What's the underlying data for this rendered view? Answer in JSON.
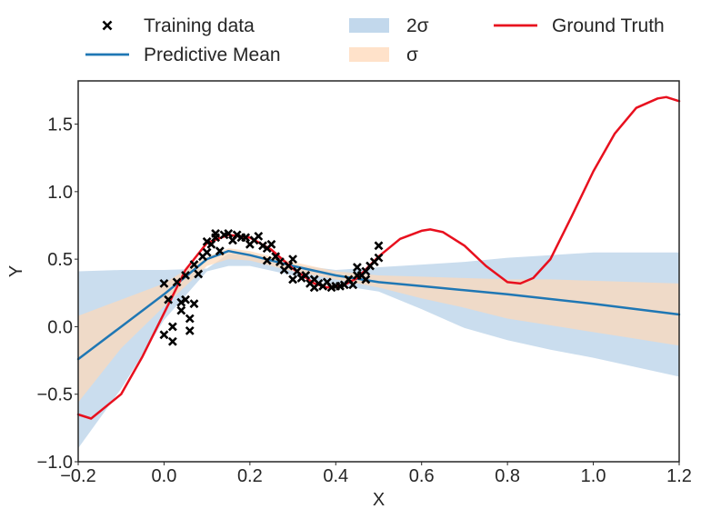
{
  "chart_data": {
    "type": "line",
    "xlabel": "X",
    "ylabel": "Y",
    "xlim": [
      -0.2,
      1.2
    ],
    "ylim": [
      -1.0,
      1.82
    ],
    "xticks": [
      -0.2,
      0.0,
      0.2,
      0.4,
      0.6,
      0.8,
      1.0,
      1.2
    ],
    "xtick_labels": [
      "−0.2",
      "0.0",
      "0.2",
      "0.4",
      "0.6",
      "0.8",
      "1.0",
      "1.2"
    ],
    "yticks": [
      -1.0,
      -0.5,
      0.0,
      0.5,
      1.0,
      1.5
    ],
    "ytick_labels": [
      "−1.0",
      "−0.5",
      "0.0",
      "0.5",
      "1.0",
      "1.5"
    ],
    "grid": false,
    "legend": {
      "placement": "top",
      "entries": [
        {
          "label": "Training data",
          "kind": "marker",
          "color": "#000000"
        },
        {
          "label": "Predictive Mean",
          "kind": "line",
          "color": "#1f77b4"
        },
        {
          "label": "2σ",
          "kind": "patch",
          "color": "#aecbe5"
        },
        {
          "label": "σ",
          "kind": "patch",
          "color": "#ffd8b8"
        },
        {
          "label": "Ground Truth",
          "kind": "line",
          "color": "#e8101e"
        }
      ]
    },
    "series": [
      {
        "name": "Training data",
        "kind": "scatter",
        "color": "#000000",
        "points": [
          [
            0.0,
            0.32
          ],
          [
            0.0,
            -0.06
          ],
          [
            0.01,
            0.2
          ],
          [
            0.02,
            0.0
          ],
          [
            0.02,
            -0.11
          ],
          [
            0.03,
            0.33
          ],
          [
            0.04,
            0.18
          ],
          [
            0.04,
            0.12
          ],
          [
            0.05,
            0.38
          ],
          [
            0.05,
            0.2
          ],
          [
            0.06,
            0.06
          ],
          [
            0.06,
            -0.03
          ],
          [
            0.07,
            0.17
          ],
          [
            0.07,
            0.46
          ],
          [
            0.08,
            0.39
          ],
          [
            0.09,
            0.52
          ],
          [
            0.1,
            0.55
          ],
          [
            0.1,
            0.63
          ],
          [
            0.11,
            0.61
          ],
          [
            0.12,
            0.66
          ],
          [
            0.12,
            0.69
          ],
          [
            0.13,
            0.56
          ],
          [
            0.14,
            0.68
          ],
          [
            0.15,
            0.69
          ],
          [
            0.16,
            0.64
          ],
          [
            0.17,
            0.68
          ],
          [
            0.18,
            0.66
          ],
          [
            0.19,
            0.66
          ],
          [
            0.2,
            0.61
          ],
          [
            0.21,
            0.64
          ],
          [
            0.22,
            0.67
          ],
          [
            0.23,
            0.6
          ],
          [
            0.24,
            0.58
          ],
          [
            0.24,
            0.49
          ],
          [
            0.25,
            0.61
          ],
          [
            0.26,
            0.52
          ],
          [
            0.27,
            0.48
          ],
          [
            0.28,
            0.42
          ],
          [
            0.29,
            0.45
          ],
          [
            0.3,
            0.35
          ],
          [
            0.3,
            0.5
          ],
          [
            0.31,
            0.41
          ],
          [
            0.32,
            0.36
          ],
          [
            0.33,
            0.38
          ],
          [
            0.34,
            0.32
          ],
          [
            0.35,
            0.35
          ],
          [
            0.35,
            0.29
          ],
          [
            0.36,
            0.32
          ],
          [
            0.37,
            0.3
          ],
          [
            0.38,
            0.33
          ],
          [
            0.39,
            0.29
          ],
          [
            0.4,
            0.3
          ],
          [
            0.41,
            0.3
          ],
          [
            0.42,
            0.31
          ],
          [
            0.43,
            0.35
          ],
          [
            0.44,
            0.31
          ],
          [
            0.45,
            0.44
          ],
          [
            0.45,
            0.38
          ],
          [
            0.46,
            0.38
          ],
          [
            0.47,
            0.41
          ],
          [
            0.47,
            0.35
          ],
          [
            0.48,
            0.45
          ],
          [
            0.49,
            0.48
          ],
          [
            0.5,
            0.51
          ],
          [
            0.5,
            0.6
          ]
        ]
      },
      {
        "name": "Predictive Mean",
        "kind": "line",
        "color": "#1f77b4",
        "x": [
          -0.2,
          0.0,
          0.1,
          0.15,
          0.2,
          0.3,
          0.4,
          0.5,
          0.6,
          0.8,
          1.0,
          1.2
        ],
        "y": [
          -0.24,
          0.24,
          0.5,
          0.56,
          0.53,
          0.45,
          0.38,
          0.33,
          0.3,
          0.24,
          0.17,
          0.09
        ]
      },
      {
        "name": "2σ",
        "kind": "band",
        "color": "#aecbe5",
        "x": [
          -0.2,
          -0.1,
          0.0,
          0.1,
          0.15,
          0.2,
          0.3,
          0.4,
          0.5,
          0.6,
          0.7,
          0.8,
          0.9,
          1.0,
          1.1,
          1.2
        ],
        "lower": [
          -0.9,
          -0.46,
          0.05,
          0.41,
          0.45,
          0.45,
          0.38,
          0.31,
          0.26,
          0.13,
          -0.01,
          -0.1,
          -0.17,
          -0.23,
          -0.3,
          -0.37
        ],
        "upper": [
          0.41,
          0.42,
          0.42,
          0.43,
          0.54,
          0.53,
          0.46,
          0.42,
          0.44,
          0.46,
          0.48,
          0.51,
          0.53,
          0.55,
          0.55,
          0.55
        ]
      },
      {
        "name": "σ",
        "kind": "band",
        "color": "#ffd8b8",
        "x": [
          -0.2,
          -0.1,
          0.0,
          0.1,
          0.15,
          0.2,
          0.3,
          0.4,
          0.5,
          0.6,
          0.7,
          0.8,
          0.9,
          1.0,
          1.1,
          1.2
        ],
        "lower": [
          -0.56,
          -0.16,
          0.15,
          0.45,
          0.5,
          0.49,
          0.41,
          0.35,
          0.29,
          0.21,
          0.14,
          0.06,
          0.01,
          -0.04,
          -0.09,
          -0.14
        ],
        "upper": [
          0.08,
          0.2,
          0.32,
          0.52,
          0.58,
          0.56,
          0.48,
          0.41,
          0.38,
          0.37,
          0.36,
          0.35,
          0.35,
          0.34,
          0.33,
          0.32
        ]
      },
      {
        "name": "Ground Truth",
        "kind": "line",
        "color": "#e8101e",
        "x": [
          -0.2,
          -0.17,
          -0.1,
          -0.05,
          0.0,
          0.05,
          0.1,
          0.15,
          0.2,
          0.25,
          0.3,
          0.35,
          0.38,
          0.42,
          0.45,
          0.5,
          0.55,
          0.6,
          0.62,
          0.65,
          0.7,
          0.75,
          0.8,
          0.83,
          0.86,
          0.9,
          0.95,
          1.0,
          1.05,
          1.1,
          1.15,
          1.17,
          1.2
        ],
        "y": [
          -0.65,
          -0.68,
          -0.5,
          -0.22,
          0.1,
          0.42,
          0.62,
          0.68,
          0.66,
          0.57,
          0.43,
          0.32,
          0.29,
          0.31,
          0.36,
          0.52,
          0.65,
          0.71,
          0.72,
          0.7,
          0.6,
          0.45,
          0.33,
          0.32,
          0.36,
          0.5,
          0.82,
          1.15,
          1.43,
          1.62,
          1.69,
          1.7,
          1.67
        ]
      }
    ]
  }
}
